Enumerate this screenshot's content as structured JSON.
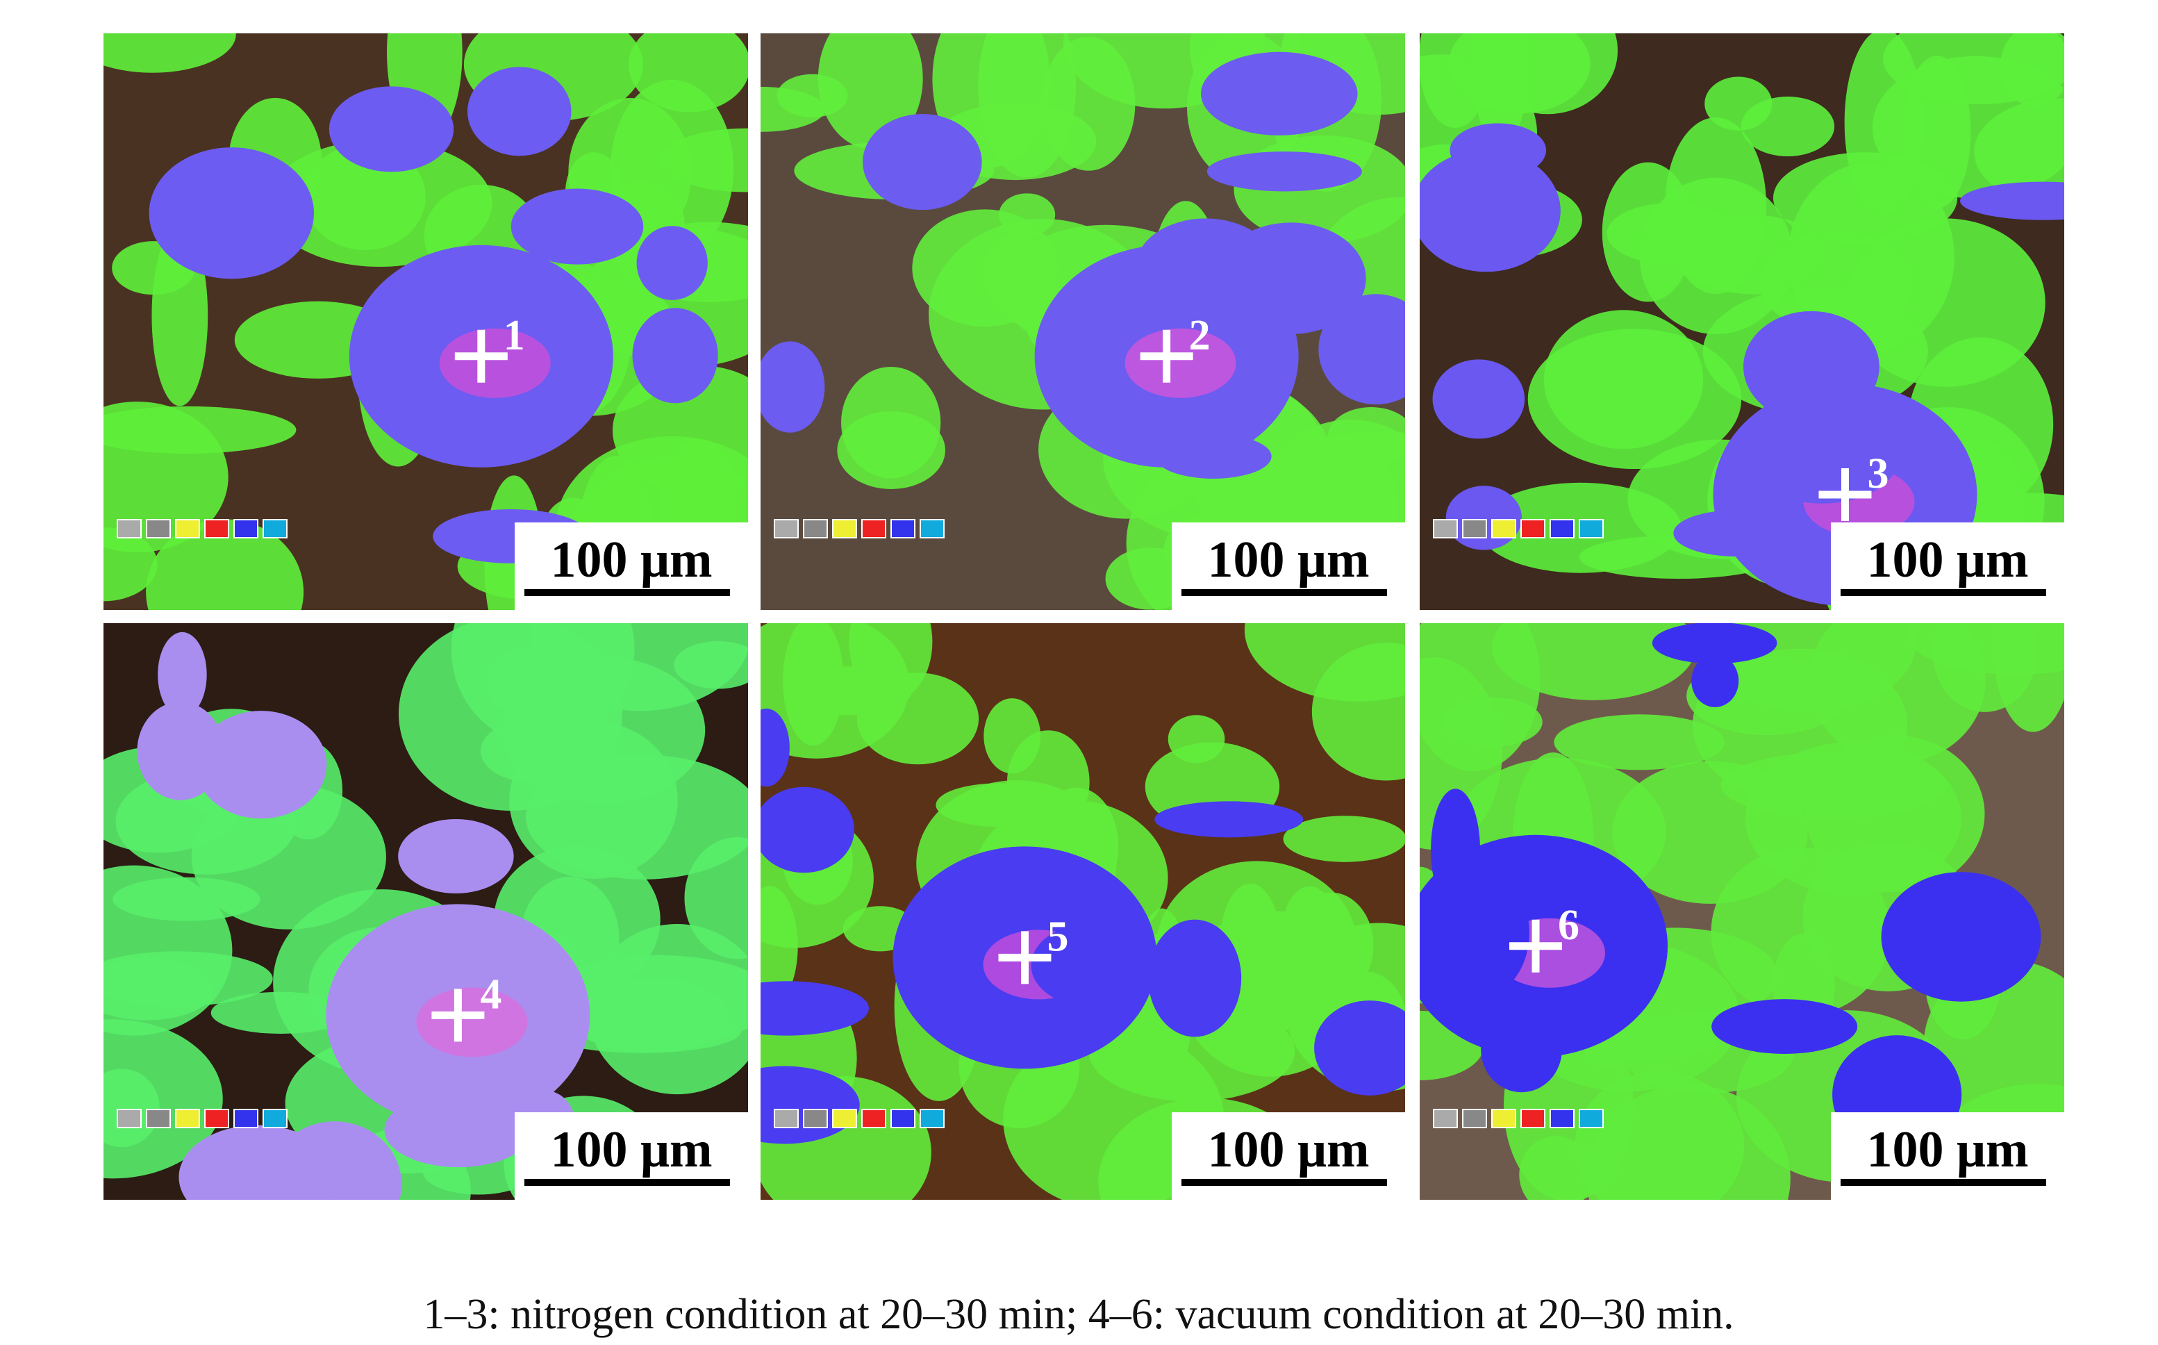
{
  "panels": [
    {
      "label": "1",
      "scale": "100 μm"
    },
    {
      "label": "2",
      "scale": "100 μm"
    },
    {
      "label": "3",
      "scale": "100 μm"
    },
    {
      "label": "4",
      "scale": "100 μm"
    },
    {
      "label": "5",
      "scale": "100 μm"
    },
    {
      "label": "6",
      "scale": "100 μm"
    }
  ],
  "caption": "1–3: nitrogen condition at 20–30 min; 4–6: vacuum condition at 20–30 min."
}
